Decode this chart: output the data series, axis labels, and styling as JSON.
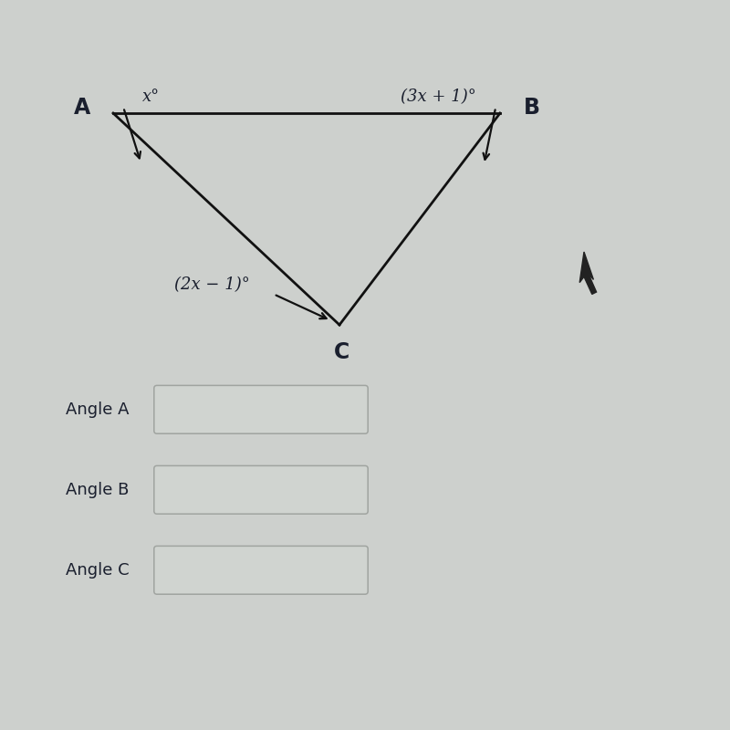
{
  "bg_color": "#d8dада",
  "triangle": {
    "A": [
      0.155,
      0.845
    ],
    "B": [
      0.685,
      0.845
    ],
    "C": [
      0.465,
      0.555
    ]
  },
  "label_A": "A",
  "label_B": "B",
  "label_C": "C",
  "angle_A_label": "x°",
  "angle_B_label": "(3x + 1)°",
  "angle_C_label": "(2x − 1)°",
  "answer_labels": [
    "Angle A",
    "Angle B",
    "Angle C"
  ],
  "font_color": "#1a1f2e",
  "box_facecolor": "#d4d8d4",
  "box_edgecolor": "#aaaaaa",
  "line_color": "#111111",
  "bg_hex": "#cdd0cd"
}
